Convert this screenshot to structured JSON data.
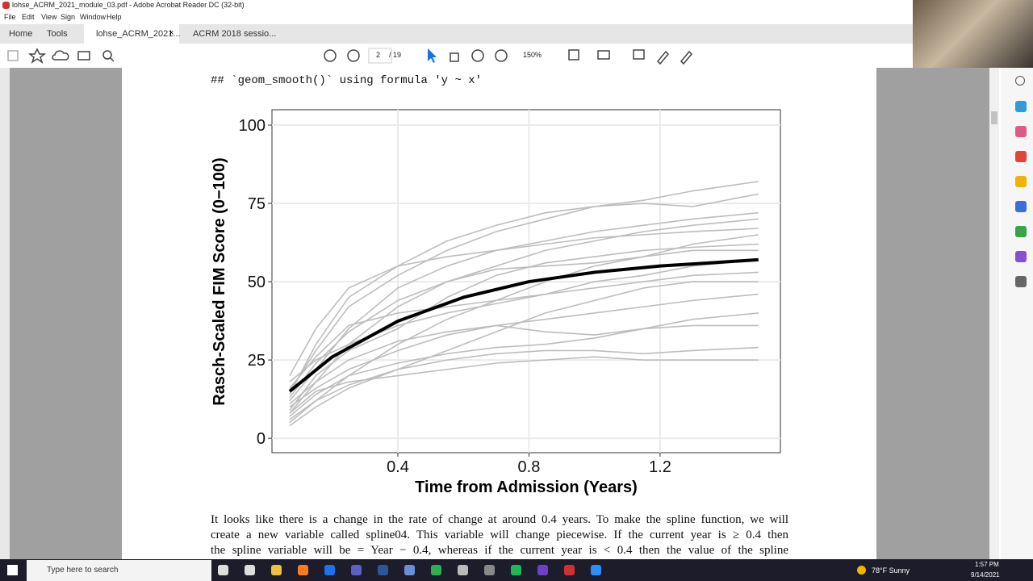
{
  "window": {
    "title": "lohse_ACRM_2021_module_03.pdf - Adobe Acrobat Reader DC (32-bit)",
    "menu": [
      "File",
      "Edit",
      "View",
      "Sign",
      "Window",
      "Help"
    ]
  },
  "tabs": [
    "Home",
    "Tools",
    "lohse_ACRM_2021...",
    "ACRM 2018 sessio..."
  ],
  "toolbar": {
    "page": "2",
    "page_count": "/ 19",
    "zoom": "150%"
  },
  "document": {
    "code": "## `geom_smooth()` using formula 'y ~ x'",
    "paragraph": [
      "It looks like there is a change in the rate of change at around 0.4 years. To make the spline function, we will",
      "create a new variable called spline04. This variable will change piecewise. If the current year is ≥ 0.4 then",
      "the spline variable will be = Year − 0.4, whereas if the current year is < 0.4 then the value of the spline"
    ]
  },
  "chart_data": {
    "type": "line",
    "x_label": "Time from Admission (Years)",
    "y_label": "Rasch-Scaled FIM Score (0−100)",
    "xlim": [
      0.016,
      1.567
    ],
    "ylim": [
      -4.6,
      104.9
    ],
    "xticks": [
      0.4,
      0.8,
      1.2
    ],
    "yticks": [
      0,
      25,
      50,
      75,
      100
    ],
    "grid": true,
    "x": [
      0.07,
      0.15,
      0.25,
      0.4,
      0.55,
      0.7,
      0.85,
      1.0,
      1.15,
      1.3,
      1.5
    ],
    "series": [
      {
        "color": "#bdbdbd",
        "values": [
          5,
          12,
          20,
          30,
          38,
          44,
          50,
          55,
          58,
          62,
          65
        ]
      },
      {
        "color": "#bdbdbd",
        "values": [
          8,
          18,
          30,
          42,
          50,
          55,
          60,
          63,
          66,
          68,
          70
        ]
      },
      {
        "color": "#bdbdbd",
        "values": [
          12,
          22,
          35,
          48,
          55,
          60,
          63,
          66,
          68,
          70,
          72
        ]
      },
      {
        "color": "#bdbdbd",
        "values": [
          15,
          28,
          42,
          52,
          60,
          66,
          70,
          74,
          76,
          79,
          82
        ]
      },
      {
        "color": "#bdbdbd",
        "values": [
          10,
          16,
          22,
          28,
          33,
          36,
          38,
          40,
          42,
          44,
          46
        ]
      },
      {
        "color": "#bdbdbd",
        "values": [
          6,
          12,
          17,
          22,
          25,
          27,
          28,
          28,
          27,
          28,
          29
        ]
      },
      {
        "color": "#bdbdbd",
        "values": [
          18,
          25,
          30,
          36,
          40,
          43,
          46,
          50,
          52,
          55,
          57
        ]
      },
      {
        "color": "#bdbdbd",
        "values": [
          14,
          30,
          45,
          55,
          58,
          60,
          62,
          64,
          65,
          66,
          67
        ]
      },
      {
        "color": "#bdbdbd",
        "values": [
          9,
          20,
          28,
          35,
          45,
          52,
          56,
          58,
          60,
          61,
          62
        ]
      },
      {
        "color": "#bdbdbd",
        "values": [
          7,
          14,
          20,
          24,
          27,
          29,
          30,
          32,
          35,
          36,
          36
        ]
      },
      {
        "color": "#bdbdbd",
        "values": [
          20,
          35,
          48,
          55,
          63,
          68,
          72,
          74,
          75,
          74,
          78
        ]
      },
      {
        "color": "#bdbdbd",
        "values": [
          11,
          18,
          25,
          31,
          34,
          36,
          34,
          33,
          35,
          38,
          40
        ]
      },
      {
        "color": "#bdbdbd",
        "values": [
          4,
          10,
          16,
          22,
          28,
          34,
          40,
          44,
          48,
          50,
          50
        ]
      },
      {
        "color": "#bdbdbd",
        "values": [
          13,
          24,
          34,
          44,
          50,
          54,
          55,
          56,
          58,
          60,
          60
        ]
      },
      {
        "color": "#bdbdbd",
        "values": [
          16,
          26,
          36,
          40,
          42,
          44,
          46,
          48,
          50,
          52,
          53
        ]
      },
      {
        "color": "#bdbdbd",
        "values": [
          8,
          15,
          18,
          20,
          22,
          24,
          25,
          26,
          25,
          25,
          25
        ]
      }
    ],
    "smooth": {
      "color": "#000000",
      "x": [
        0.07,
        0.2,
        0.4,
        0.6,
        0.8,
        1.0,
        1.2,
        1.5
      ],
      "values": [
        15,
        26,
        37.4,
        45,
        50,
        53,
        55,
        57
      ]
    }
  },
  "taskbar": {
    "search": "Type here to search",
    "weather": "78°F  Sunny",
    "time": "1:57 PM",
    "date": "9/14/2021"
  }
}
